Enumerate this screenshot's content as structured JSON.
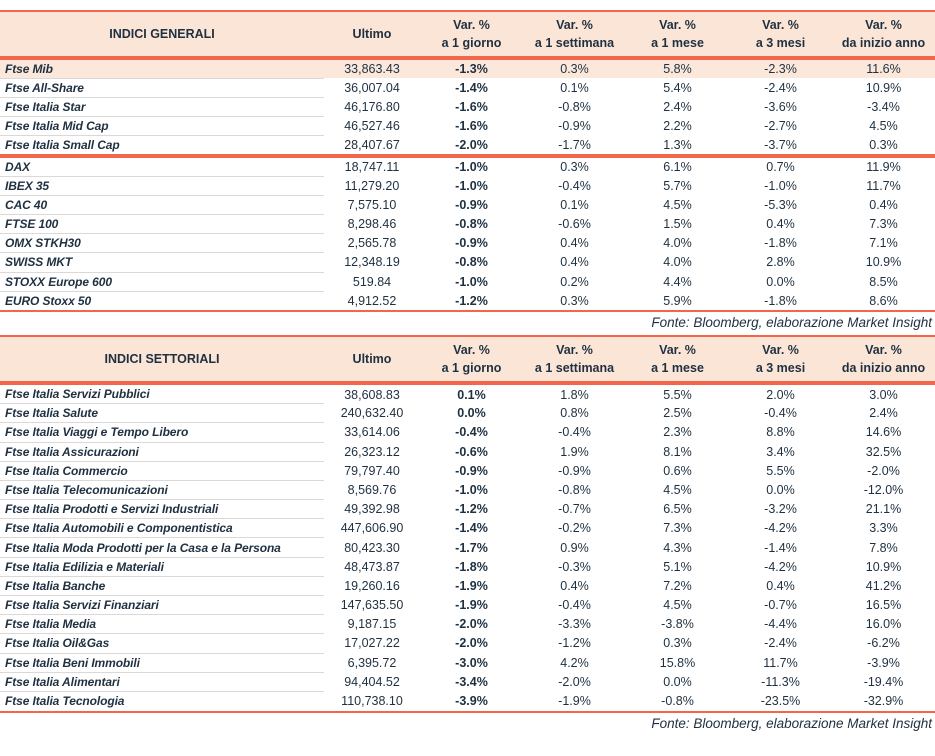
{
  "colors": {
    "accent_line": "#f2664c",
    "header_bg": "#fbe5d7",
    "highlight_row_bg": "#fce8db",
    "text": "#1f3040",
    "separator": "#d9d9d9"
  },
  "column_headers": {
    "ultimo": "Ultimo",
    "vars": [
      {
        "line1": "Var. %",
        "line2": "a 1 giorno"
      },
      {
        "line1": "Var. %",
        "line2": "a 1 settimana"
      },
      {
        "line1": "Var. %",
        "line2": "a 1 mese"
      },
      {
        "line1": "Var. %",
        "line2": "a 3 mesi"
      },
      {
        "line1": "Var. %",
        "line2": "da inizio anno"
      }
    ]
  },
  "tables": [
    {
      "title": "INDICI GENERALI",
      "source": "Fonte: Bloomberg, elaborazione Market Insight",
      "groups": [
        [
          {
            "name": "Ftse Mib",
            "highlight": true,
            "values": [
              "33,863.43",
              "-1.3%",
              "0.3%",
              "5.8%",
              "-2.3%",
              "11.6%"
            ]
          },
          {
            "name": "Ftse All-Share",
            "values": [
              "36,007.04",
              "-1.4%",
              "0.1%",
              "5.4%",
              "-2.4%",
              "10.9%"
            ]
          },
          {
            "name": "Ftse Italia Star",
            "values": [
              "46,176.80",
              "-1.6%",
              "-0.8%",
              "2.4%",
              "-3.6%",
              "-3.4%"
            ]
          },
          {
            "name": "Ftse Italia Mid Cap",
            "values": [
              "46,527.46",
              "-1.6%",
              "-0.9%",
              "2.2%",
              "-2.7%",
              "4.5%"
            ]
          },
          {
            "name": "Ftse Italia Small Cap",
            "values": [
              "28,407.67",
              "-2.0%",
              "-1.7%",
              "1.3%",
              "-3.7%",
              "0.3%"
            ]
          }
        ],
        [
          {
            "name": "DAX",
            "values": [
              "18,747.11",
              "-1.0%",
              "0.3%",
              "6.1%",
              "0.7%",
              "11.9%"
            ]
          },
          {
            "name": "IBEX 35",
            "values": [
              "11,279.20",
              "-1.0%",
              "-0.4%",
              "5.7%",
              "-1.0%",
              "11.7%"
            ]
          },
          {
            "name": "CAC 40",
            "values": [
              "7,575.10",
              "-0.9%",
              "0.1%",
              "4.5%",
              "-5.3%",
              "0.4%"
            ]
          },
          {
            "name": "FTSE 100",
            "values": [
              "8,298.46",
              "-0.8%",
              "-0.6%",
              "1.5%",
              "0.4%",
              "7.3%"
            ]
          },
          {
            "name": "OMX STKH30",
            "values": [
              "2,565.78",
              "-0.9%",
              "0.4%",
              "4.0%",
              "-1.8%",
              "7.1%"
            ]
          },
          {
            "name": "SWISS MKT",
            "values": [
              "12,348.19",
              "-0.8%",
              "0.4%",
              "4.0%",
              "2.8%",
              "10.9%"
            ]
          },
          {
            "name": "STOXX Europe 600",
            "values": [
              "519.84",
              "-1.0%",
              "0.2%",
              "4.4%",
              "0.0%",
              "8.5%"
            ]
          },
          {
            "name": "EURO Stoxx 50",
            "values": [
              "4,912.52",
              "-1.2%",
              "0.3%",
              "5.9%",
              "-1.8%",
              "8.6%"
            ]
          }
        ]
      ]
    },
    {
      "title": "INDICI SETTORIALI",
      "source": "Fonte: Bloomberg, elaborazione Market Insight",
      "groups": [
        [
          {
            "name": "Ftse Italia Servizi Pubblici",
            "values": [
              "38,608.83",
              "0.1%",
              "1.8%",
              "5.5%",
              "2.0%",
              "3.0%"
            ]
          },
          {
            "name": "Ftse Italia Salute",
            "values": [
              "240,632.40",
              "0.0%",
              "0.8%",
              "2.5%",
              "-0.4%",
              "2.4%"
            ]
          },
          {
            "name": "Ftse Italia Viaggi e Tempo Libero",
            "values": [
              "33,614.06",
              "-0.4%",
              "-0.4%",
              "2.3%",
              "8.8%",
              "14.6%"
            ]
          },
          {
            "name": "Ftse Italia Assicurazioni",
            "values": [
              "26,323.12",
              "-0.6%",
              "1.9%",
              "8.1%",
              "3.4%",
              "32.5%"
            ]
          },
          {
            "name": "Ftse Italia Commercio",
            "values": [
              "79,797.40",
              "-0.9%",
              "-0.9%",
              "0.6%",
              "5.5%",
              "-2.0%"
            ]
          },
          {
            "name": "Ftse Italia Telecomunicazioni",
            "values": [
              "8,569.76",
              "-1.0%",
              "-0.8%",
              "4.5%",
              "0.0%",
              "-12.0%"
            ]
          },
          {
            "name": "Ftse Italia Prodotti e Servizi Industriali",
            "values": [
              "49,392.98",
              "-1.2%",
              "-0.7%",
              "6.5%",
              "-3.2%",
              "21.1%"
            ]
          },
          {
            "name": "Ftse Italia Automobili e Componentistica",
            "values": [
              "447,606.90",
              "-1.4%",
              "-0.2%",
              "7.3%",
              "-4.2%",
              "3.3%"
            ]
          },
          {
            "name": "Ftse Italia Moda Prodotti per la Casa e la Persona",
            "values": [
              "80,423.30",
              "-1.7%",
              "0.9%",
              "4.3%",
              "-1.4%",
              "7.8%"
            ]
          },
          {
            "name": "Ftse Italia Edilizia e Materiali",
            "values": [
              "48,473.87",
              "-1.8%",
              "-0.3%",
              "5.1%",
              "-4.2%",
              "10.9%"
            ]
          },
          {
            "name": "Ftse Italia Banche",
            "values": [
              "19,260.16",
              "-1.9%",
              "0.4%",
              "7.2%",
              "0.4%",
              "41.2%"
            ]
          },
          {
            "name": "Ftse Italia Servizi Finanziari",
            "values": [
              "147,635.50",
              "-1.9%",
              "-0.4%",
              "4.5%",
              "-0.7%",
              "16.5%"
            ]
          },
          {
            "name": "Ftse Italia Media",
            "values": [
              "9,187.15",
              "-2.0%",
              "-3.3%",
              "-3.8%",
              "-4.4%",
              "16.0%"
            ]
          },
          {
            "name": "Ftse Italia Oil&Gas",
            "values": [
              "17,027.22",
              "-2.0%",
              "-1.2%",
              "0.3%",
              "-2.4%",
              "-6.2%"
            ]
          },
          {
            "name": "Ftse Italia Beni Immobili",
            "values": [
              "6,395.72",
              "-3.0%",
              "4.2%",
              "15.8%",
              "11.7%",
              "-3.9%"
            ]
          },
          {
            "name": "Ftse Italia Alimentari",
            "values": [
              "94,404.52",
              "-3.4%",
              "-2.0%",
              "0.0%",
              "-11.3%",
              "-19.4%"
            ]
          },
          {
            "name": "Ftse Italia Tecnologia",
            "values": [
              "110,738.10",
              "-3.9%",
              "-1.9%",
              "-0.8%",
              "-23.5%",
              "-32.9%"
            ]
          }
        ]
      ]
    }
  ]
}
